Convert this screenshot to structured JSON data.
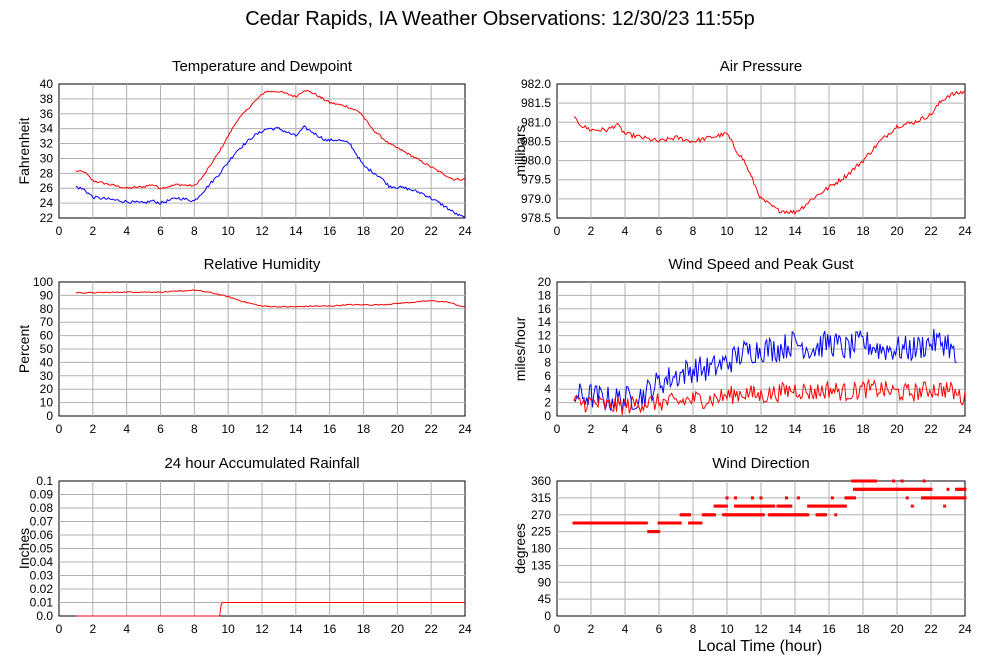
{
  "page_title": "Cedar Rapids, IA Weather Observations: 12/30/23 11:55p",
  "shared_xlabel": "Local Time (hour)",
  "chart_data": [
    {
      "id": "temp",
      "type": "line",
      "title": "Temperature and Dewpoint",
      "ylabel": "Fahrenheit",
      "xlim": [
        0,
        24
      ],
      "ylim": [
        22,
        40
      ],
      "yticks": [
        22,
        24,
        26,
        28,
        30,
        32,
        34,
        36,
        38,
        40
      ],
      "xticks": [
        0,
        2,
        4,
        6,
        8,
        10,
        12,
        14,
        16,
        18,
        20,
        22,
        24
      ],
      "grid": true,
      "series": [
        {
          "color": "#ff0000",
          "noise": 0.15,
          "style": "line",
          "points": [
            [
              1,
              28.3
            ],
            [
              1.5,
              28.2
            ],
            [
              2,
              27.0
            ],
            [
              3,
              26.5
            ],
            [
              4,
              26.0
            ],
            [
              5,
              26.2
            ],
            [
              5.5,
              26.5
            ],
            [
              6,
              26.0
            ],
            [
              7,
              26.5
            ],
            [
              8,
              26.3
            ],
            [
              8.5,
              27.5
            ],
            [
              9.5,
              31
            ],
            [
              10.5,
              35
            ],
            [
              11.5,
              37.5
            ],
            [
              12.2,
              39.0
            ],
            [
              13,
              39.0
            ],
            [
              14,
              38.3
            ],
            [
              14.5,
              39.2
            ],
            [
              15,
              38.8
            ],
            [
              16,
              37.5
            ],
            [
              17,
              37.0
            ],
            [
              17.8,
              36.2
            ],
            [
              18.5,
              34
            ],
            [
              19.5,
              32
            ],
            [
              20.5,
              30.8
            ],
            [
              21.5,
              29.5
            ],
            [
              22.5,
              28.2
            ],
            [
              23.3,
              27.2
            ],
            [
              24,
              27.2
            ]
          ]
        },
        {
          "color": "#0000ff",
          "noise": 0.2,
          "style": "line",
          "points": [
            [
              1,
              26.2
            ],
            [
              1.5,
              25.8
            ],
            [
              2,
              24.8
            ],
            [
              3,
              24.5
            ],
            [
              4,
              24.2
            ],
            [
              5,
              24.0
            ],
            [
              5.5,
              24.3
            ],
            [
              6,
              24.0
            ],
            [
              7,
              24.7
            ],
            [
              8,
              24.3
            ],
            [
              8.5,
              25.5
            ],
            [
              9.5,
              28
            ],
            [
              10.5,
              31
            ],
            [
              11.5,
              33
            ],
            [
              12.3,
              34.0
            ],
            [
              13,
              34.0
            ],
            [
              14,
              33.0
            ],
            [
              14.5,
              34.2
            ],
            [
              15,
              33.5
            ],
            [
              15.8,
              32.4
            ],
            [
              16.5,
              32.5
            ],
            [
              17.2,
              32.0
            ],
            [
              18,
              29
            ],
            [
              19,
              27.5
            ],
            [
              19.5,
              26.3
            ],
            [
              20.5,
              26.0
            ],
            [
              21.5,
              25.3
            ],
            [
              22.5,
              24.0
            ],
            [
              23.5,
              22.5
            ],
            [
              24,
              22.0
            ]
          ]
        }
      ]
    },
    {
      "id": "pressure",
      "type": "line",
      "title": "Air Pressure",
      "ylabel": "millibars",
      "xlim": [
        0,
        24
      ],
      "ylim": [
        978.5,
        982.0
      ],
      "yticks": [
        "978.5",
        "979.0",
        "979.5",
        "980.0",
        "980.5",
        "981.0",
        "981.5",
        "982.0"
      ],
      "xticks": [
        0,
        2,
        4,
        6,
        8,
        10,
        12,
        14,
        16,
        18,
        20,
        22,
        24
      ],
      "grid": true,
      "series": [
        {
          "color": "#ff0000",
          "noise": 0.06,
          "style": "line",
          "points": [
            [
              1,
              981.1
            ],
            [
              1.5,
              980.9
            ],
            [
              2,
              980.8
            ],
            [
              3,
              980.8
            ],
            [
              3.5,
              980.95
            ],
            [
              4,
              980.7
            ],
            [
              5,
              980.6
            ],
            [
              6,
              980.5
            ],
            [
              7,
              980.6
            ],
            [
              8,
              980.5
            ],
            [
              9,
              980.6
            ],
            [
              10,
              980.7
            ],
            [
              10.5,
              980.3
            ],
            [
              11,
              980.0
            ],
            [
              11.5,
              979.5
            ],
            [
              12,
              979.0
            ],
            [
              13,
              978.7
            ],
            [
              14,
              978.65
            ],
            [
              14.5,
              978.8
            ],
            [
              15,
              979.0
            ],
            [
              16,
              979.3
            ],
            [
              17,
              979.6
            ],
            [
              18,
              980.0
            ],
            [
              19,
              980.5
            ],
            [
              20,
              980.9
            ],
            [
              21,
              981.0
            ],
            [
              22,
              981.2
            ],
            [
              22.5,
              981.5
            ],
            [
              23,
              981.7
            ],
            [
              24,
              981.8
            ]
          ]
        }
      ]
    },
    {
      "id": "rh",
      "type": "line",
      "title": "Relative Humidity",
      "ylabel": "Percent",
      "xlim": [
        0,
        24
      ],
      "ylim": [
        0,
        100
      ],
      "yticks": [
        0,
        10,
        20,
        30,
        40,
        50,
        60,
        70,
        80,
        90,
        100
      ],
      "xticks": [
        0,
        2,
        4,
        6,
        8,
        10,
        12,
        14,
        16,
        18,
        20,
        22,
        24
      ],
      "grid": true,
      "series": [
        {
          "color": "#ff0000",
          "noise": 0.4,
          "style": "line",
          "points": [
            [
              1,
              92
            ],
            [
              2,
              92
            ],
            [
              4,
              92.5
            ],
            [
              6,
              92.5
            ],
            [
              7,
              93
            ],
            [
              8,
              94
            ],
            [
              9,
              92
            ],
            [
              10,
              89
            ],
            [
              11,
              85
            ],
            [
              12,
              82
            ],
            [
              13,
              81.5
            ],
            [
              14,
              81.5
            ],
            [
              15,
              82
            ],
            [
              16,
              82
            ],
            [
              17,
              83
            ],
            [
              18,
              83
            ],
            [
              19,
              83
            ],
            [
              20,
              84
            ],
            [
              21,
              85
            ],
            [
              22,
              86
            ],
            [
              23,
              85
            ],
            [
              24,
              81
            ]
          ]
        }
      ]
    },
    {
      "id": "wind",
      "type": "line",
      "title": "Wind Speed and Peak Gust",
      "ylabel": "miles/hour",
      "xlim": [
        0,
        24
      ],
      "ylim": [
        0,
        20
      ],
      "yticks": [
        0,
        2,
        4,
        6,
        8,
        10,
        12,
        14,
        16,
        18,
        20
      ],
      "xticks": [
        0,
        2,
        4,
        6,
        8,
        10,
        12,
        14,
        16,
        18,
        20,
        22,
        24
      ],
      "grid": true,
      "series": [
        {
          "color": "#0000ff",
          "noise": 2.0,
          "style": "line",
          "points": [
            [
              1,
              3
            ],
            [
              2,
              3
            ],
            [
              3,
              2.5
            ],
            [
              4,
              2.5
            ],
            [
              5,
              3
            ],
            [
              6,
              5
            ],
            [
              7,
              6
            ],
            [
              8,
              7
            ],
            [
              9,
              7
            ],
            [
              10,
              8
            ],
            [
              11,
              9.5
            ],
            [
              12,
              10
            ],
            [
              13,
              10
            ],
            [
              14,
              11
            ],
            [
              15,
              10
            ],
            [
              16,
              11
            ],
            [
              17,
              10
            ],
            [
              18,
              11
            ],
            [
              19,
              10
            ],
            [
              20,
              10
            ],
            [
              21,
              10
            ],
            [
              22,
              11
            ],
            [
              23,
              11
            ],
            [
              23.5,
              8
            ]
          ]
        },
        {
          "color": "#ff0000",
          "noise": 1.4,
          "style": "line",
          "points": [
            [
              1,
              2
            ],
            [
              2,
              2
            ],
            [
              3,
              1.5
            ],
            [
              4,
              1.5
            ],
            [
              5,
              2
            ],
            [
              6,
              2
            ],
            [
              7,
              2
            ],
            [
              8,
              2.5
            ],
            [
              9,
              2.5
            ],
            [
              10,
              3
            ],
            [
              11,
              3.5
            ],
            [
              12,
              3
            ],
            [
              13,
              3.5
            ],
            [
              14,
              4
            ],
            [
              15,
              3.5
            ],
            [
              16,
              4
            ],
            [
              17,
              3.5
            ],
            [
              18,
              4
            ],
            [
              19,
              4
            ],
            [
              20,
              3.5
            ],
            [
              21,
              3.5
            ],
            [
              22,
              4
            ],
            [
              23,
              4
            ],
            [
              24,
              2.5
            ]
          ]
        }
      ]
    },
    {
      "id": "rain",
      "type": "line",
      "title": "24 hour Accumulated Rainfall",
      "ylabel": "Inches",
      "xlim": [
        0,
        24
      ],
      "ylim": [
        0,
        0.1
      ],
      "yticks": [
        "0.0",
        "0.01",
        "0.02",
        "0.03",
        "0.04",
        "0.05",
        "0.06",
        "0.07",
        "0.08",
        "0.09",
        "0.1"
      ],
      "xticks": [
        0,
        2,
        4,
        6,
        8,
        10,
        12,
        14,
        16,
        18,
        20,
        22,
        24
      ],
      "grid": true,
      "series": [
        {
          "color": "#ff0000",
          "noise": 0,
          "style": "line",
          "points": [
            [
              1,
              0
            ],
            [
              9.5,
              0
            ],
            [
              9.6,
              0.01
            ],
            [
              24,
              0.01
            ]
          ]
        }
      ]
    },
    {
      "id": "dir",
      "type": "scatter",
      "title": "Wind Direction",
      "ylabel": "degrees",
      "xlim": [
        0,
        24
      ],
      "ylim": [
        0,
        360
      ],
      "yticks": [
        0,
        45,
        90,
        135,
        180,
        225,
        270,
        315,
        360
      ],
      "xticks": [
        0,
        2,
        4,
        6,
        8,
        10,
        12,
        14,
        16,
        18,
        20,
        22,
        24
      ],
      "grid": true,
      "segments": [
        {
          "x0": 1.0,
          "x1": 5.3,
          "y": 248
        },
        {
          "x0": 5.4,
          "x1": 6.0,
          "y": 225
        },
        {
          "x0": 6.0,
          "x1": 7.3,
          "y": 248
        },
        {
          "x0": 7.3,
          "x1": 7.8,
          "y": 270
        },
        {
          "x0": 7.8,
          "x1": 8.5,
          "y": 248
        },
        {
          "x0": 8.6,
          "x1": 9.3,
          "y": 270
        },
        {
          "x0": 9.3,
          "x1": 10.0,
          "y": 293
        },
        {
          "x0": 9.8,
          "x1": 12.2,
          "y": 270
        },
        {
          "x0": 10.5,
          "x1": 12.8,
          "y": 293
        },
        {
          "x0": 12.5,
          "x1": 14.8,
          "y": 270
        },
        {
          "x0": 13.0,
          "x1": 13.8,
          "y": 293
        },
        {
          "x0": 14.8,
          "x1": 17.0,
          "y": 293
        },
        {
          "x0": 15.3,
          "x1": 15.8,
          "y": 270
        },
        {
          "x0": 17.0,
          "x1": 17.5,
          "y": 315
        },
        {
          "x0": 17.4,
          "x1": 18.8,
          "y": 360
        },
        {
          "x0": 17.5,
          "x1": 20.0,
          "y": 338
        },
        {
          "x0": 20.0,
          "x1": 22.0,
          "y": 338
        },
        {
          "x0": 21.5,
          "x1": 24.0,
          "y": 315
        },
        {
          "x0": 23.5,
          "x1": 24.0,
          "y": 338
        }
      ],
      "points": [
        [
          10.0,
          315
        ],
        [
          10.5,
          315
        ],
        [
          11.5,
          315
        ],
        [
          12.0,
          315
        ],
        [
          13.5,
          315
        ],
        [
          14.2,
          315
        ],
        [
          16.2,
          315
        ],
        [
          16.4,
          270
        ],
        [
          19.8,
          360
        ],
        [
          20.3,
          360
        ],
        [
          20.6,
          315
        ],
        [
          20.9,
          293
        ],
        [
          21.2,
          338
        ],
        [
          21.6,
          360
        ],
        [
          22.8,
          293
        ],
        [
          23.0,
          338
        ]
      ]
    }
  ]
}
